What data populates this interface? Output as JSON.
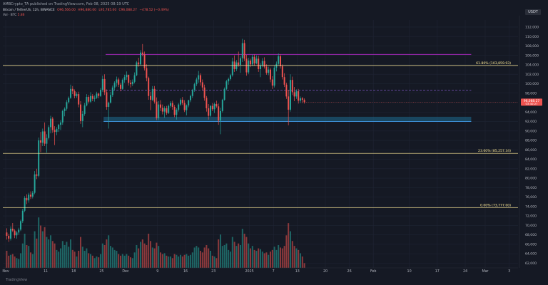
{
  "header": {
    "published": "AMBCrypto_TA published on TradingView.com, Feb 08, 2025 08:19 UTC",
    "symbol": "Bitcoin / TetherUS, 12h, BINANCE",
    "ohlc": [
      "O96,566.00",
      "H96,880.00",
      "L95,785.00",
      "C96,088.27",
      "−478.52 (−0.49%)"
    ],
    "volume_label": "Vol · BTC",
    "volume_value": "5.86"
  },
  "price_unit": "USDT",
  "footer": "TradingView",
  "colors": {
    "background": "#151924",
    "up": "#26a69a",
    "down": "#ef5350",
    "range_line": "#9c27b0",
    "fib_line": "#ffeb98",
    "midline": "#7e57c2",
    "support_zone": "#1e6b8f",
    "grid": "#1f2433",
    "axis_text": "#b2b5be",
    "price_tag": "#ef5350"
  },
  "chart_data": {
    "type": "candlestick",
    "timeframe": "12h",
    "x_ticks": [
      "Nov",
      "11",
      "18",
      "25",
      "Dec",
      "9",
      "16",
      "23",
      "2025",
      "7",
      "13",
      "20",
      "26",
      "Feb",
      "10",
      "17",
      "24",
      "Mar",
      "3"
    ],
    "x_tick_days": [
      0,
      10,
      17,
      24,
      30,
      38,
      45,
      52,
      61,
      67,
      73,
      80,
      86,
      92,
      101,
      108,
      115,
      120,
      126
    ],
    "x_range_days": [
      0,
      128
    ],
    "y_ticks": [
      62000,
      64000,
      66000,
      68000,
      70000,
      72000,
      74000,
      76000,
      78000,
      80000,
      82000,
      84000,
      86000,
      88000,
      90000,
      92000,
      94000,
      96000,
      98000,
      100000,
      102000,
      104000,
      106000,
      108000,
      110000,
      112000
    ],
    "y_range": [
      61000,
      113500
    ],
    "last_price": 96088.27,
    "last_price_label": "96,088.27",
    "last_countdown": "03:40:27",
    "levels": [
      {
        "label": "61.80% (103,859.93)",
        "price": 103859.93
      },
      {
        "label": "23.60% (85,257.34)",
        "price": 85257.34
      },
      {
        "label": "0.00% (73,777.00)",
        "price": 73777.0
      }
    ],
    "range_high": 106200,
    "range_mid": 98600,
    "support_zone": [
      92000,
      93000
    ],
    "volume_max_btc": 70000,
    "candles": [
      [
        68500,
        69400,
        67000,
        67800,
        21000
      ],
      [
        67800,
        68200,
        66500,
        67200,
        15000
      ],
      [
        67200,
        69800,
        66800,
        69300,
        16000
      ],
      [
        69300,
        70500,
        68600,
        68900,
        17000
      ],
      [
        68900,
        69200,
        67300,
        67900,
        14000
      ],
      [
        67900,
        68800,
        67200,
        68500,
        12000
      ],
      [
        68500,
        69500,
        68000,
        69100,
        11000
      ],
      [
        69100,
        71200,
        68800,
        70900,
        18000
      ],
      [
        70900,
        73500,
        70500,
        73100,
        30000
      ],
      [
        73100,
        76200,
        72800,
        75800,
        42000
      ],
      [
        75800,
        76600,
        74500,
        75300,
        28000
      ],
      [
        75300,
        76900,
        74800,
        76500,
        27000
      ],
      [
        76500,
        77200,
        75600,
        76100,
        19000
      ],
      [
        76100,
        77300,
        75700,
        76900,
        17000
      ],
      [
        76900,
        81500,
        76600,
        80800,
        45000
      ],
      [
        80800,
        82000,
        79800,
        80500,
        36000
      ],
      [
        80500,
        88600,
        80200,
        88000,
        62000
      ],
      [
        88000,
        89800,
        85500,
        87500,
        52000
      ],
      [
        87500,
        90500,
        86800,
        89900,
        45000
      ],
      [
        89900,
        91800,
        86800,
        87300,
        50000
      ],
      [
        87300,
        89300,
        85400,
        88500,
        38000
      ],
      [
        88500,
        91200,
        88200,
        90800,
        35000
      ],
      [
        90800,
        93200,
        89500,
        92600,
        40000
      ],
      [
        92600,
        93000,
        89600,
        90200,
        33000
      ],
      [
        90200,
        91000,
        87000,
        89800,
        30000
      ],
      [
        89800,
        90800,
        89100,
        90400,
        22000
      ],
      [
        90400,
        91500,
        89800,
        91300,
        20000
      ],
      [
        91300,
        92300,
        90200,
        91800,
        24000
      ],
      [
        91800,
        94500,
        91300,
        94200,
        33000
      ],
      [
        94200,
        95000,
        93100,
        94700,
        28000
      ],
      [
        94700,
        96500,
        94300,
        96100,
        32000
      ],
      [
        96100,
        97300,
        95800,
        97000,
        26000
      ],
      [
        97000,
        99800,
        96800,
        98900,
        35000
      ],
      [
        98900,
        99500,
        97800,
        98400,
        22000
      ],
      [
        98400,
        98800,
        96900,
        97400,
        20000
      ],
      [
        97400,
        98200,
        97000,
        97800,
        14000
      ],
      [
        97800,
        98300,
        95000,
        95600,
        21000
      ],
      [
        95600,
        96300,
        91500,
        92100,
        38000
      ],
      [
        92100,
        94200,
        90800,
        93600,
        26000
      ],
      [
        93600,
        95900,
        93200,
        95400,
        21000
      ],
      [
        95400,
        97800,
        95200,
        97200,
        24000
      ],
      [
        97200,
        97600,
        95800,
        96200,
        18000
      ],
      [
        96200,
        98200,
        95900,
        97400,
        17000
      ],
      [
        97400,
        97800,
        96300,
        96800,
        15000
      ],
      [
        96800,
        97500,
        96200,
        97000,
        12000
      ],
      [
        97000,
        98300,
        96800,
        97900,
        14000
      ],
      [
        97900,
        98100,
        96900,
        97400,
        13000
      ],
      [
        97400,
        99100,
        97200,
        98700,
        17000
      ],
      [
        98700,
        101700,
        98300,
        101000,
        30000
      ],
      [
        101000,
        102000,
        97600,
        98200,
        28000
      ],
      [
        98200,
        98800,
        94500,
        95100,
        35000
      ],
      [
        95100,
        96200,
        90500,
        96000,
        40000
      ],
      [
        96000,
        98300,
        95800,
        97600,
        27000
      ],
      [
        97600,
        99600,
        97200,
        99200,
        25000
      ],
      [
        99200,
        100500,
        98600,
        100200,
        22000
      ],
      [
        100200,
        101500,
        99400,
        100900,
        21000
      ],
      [
        100900,
        101300,
        99300,
        99800,
        17000
      ],
      [
        99800,
        100200,
        98400,
        98900,
        15000
      ],
      [
        98900,
        101100,
        98700,
        100800,
        17000
      ],
      [
        100800,
        101900,
        100200,
        101400,
        15000
      ],
      [
        101400,
        102600,
        100800,
        101900,
        17000
      ],
      [
        101900,
        101800,
        99600,
        100200,
        15000
      ],
      [
        100200,
        100800,
        99200,
        99900,
        13000
      ],
      [
        99900,
        100900,
        99500,
        100400,
        12000
      ],
      [
        100400,
        102400,
        100100,
        101800,
        19000
      ],
      [
        101800,
        104800,
        101600,
        104500,
        28000
      ],
      [
        104500,
        105500,
        103600,
        104100,
        24000
      ],
      [
        104100,
        107100,
        103900,
        106600,
        32000
      ],
      [
        106600,
        108400,
        105800,
        106200,
        35000
      ],
      [
        106200,
        106800,
        102800,
        103300,
        30000
      ],
      [
        103300,
        104100,
        100500,
        101200,
        28000
      ],
      [
        101200,
        101500,
        96600,
        97400,
        42000
      ],
      [
        97400,
        98300,
        94400,
        96600,
        33000
      ],
      [
        96600,
        99500,
        96300,
        98900,
        25000
      ],
      [
        98900,
        99500,
        95800,
        96200,
        24000
      ],
      [
        96200,
        97100,
        92300,
        92700,
        31000
      ],
      [
        92700,
        96300,
        92300,
        95600,
        27000
      ],
      [
        95600,
        96500,
        94200,
        94900,
        19000
      ],
      [
        94900,
        95600,
        93500,
        94100,
        17000
      ],
      [
        94100,
        95200,
        92800,
        94800,
        18000
      ],
      [
        94800,
        95300,
        93400,
        93800,
        15000
      ],
      [
        93800,
        95600,
        93600,
        95300,
        14000
      ],
      [
        95300,
        96300,
        94900,
        95900,
        14000
      ],
      [
        95900,
        96400,
        94500,
        95100,
        12000
      ],
      [
        95100,
        95500,
        92900,
        93400,
        17000
      ],
      [
        93400,
        94800,
        92400,
        94500,
        16000
      ],
      [
        94500,
        95900,
        94100,
        95600,
        14000
      ],
      [
        95600,
        96900,
        95300,
        96600,
        16000
      ],
      [
        96600,
        97200,
        95500,
        95900,
        14000
      ],
      [
        95900,
        96500,
        94000,
        94400,
        16000
      ],
      [
        94400,
        95600,
        93300,
        95400,
        17000
      ],
      [
        95400,
        96600,
        95000,
        96500,
        15000
      ],
      [
        96500,
        97700,
        96100,
        97400,
        16000
      ],
      [
        97400,
        98900,
        97000,
        98700,
        19000
      ],
      [
        98700,
        100200,
        98300,
        99900,
        25000
      ],
      [
        99900,
        101300,
        99500,
        100900,
        27000
      ],
      [
        100900,
        102700,
        100200,
        101800,
        25000
      ],
      [
        101800,
        102200,
        99600,
        100300,
        21000
      ],
      [
        100300,
        100900,
        98600,
        99200,
        19000
      ],
      [
        99200,
        99800,
        96400,
        97000,
        25000
      ],
      [
        97000,
        97400,
        94100,
        94800,
        28000
      ],
      [
        94800,
        95700,
        92400,
        93200,
        24000
      ],
      [
        93200,
        95500,
        93000,
        95300,
        21000
      ],
      [
        95300,
        95900,
        94200,
        94600,
        15000
      ],
      [
        94600,
        96000,
        93800,
        95700,
        14000
      ],
      [
        95700,
        96400,
        94900,
        95200,
        12000
      ],
      [
        95200,
        95800,
        91300,
        92200,
        35000
      ],
      [
        92200,
        94900,
        89300,
        94200,
        41000
      ],
      [
        94200,
        96800,
        93900,
        96600,
        27000
      ],
      [
        96600,
        99200,
        96400,
        98900,
        28000
      ],
      [
        98900,
        100800,
        98600,
        100500,
        30000
      ],
      [
        100500,
        101300,
        99800,
        101000,
        22000
      ],
      [
        101000,
        102100,
        100700,
        101800,
        20000
      ],
      [
        101800,
        105500,
        101500,
        104700,
        38000
      ],
      [
        104700,
        106000,
        102500,
        103100,
        32000
      ],
      [
        103100,
        105000,
        102700,
        104500,
        27000
      ],
      [
        104500,
        106800,
        103600,
        104000,
        30000
      ],
      [
        104000,
        105800,
        102300,
        105400,
        28000
      ],
      [
        105400,
        109500,
        104600,
        108600,
        48000
      ],
      [
        108600,
        109300,
        104800,
        105300,
        42000
      ],
      [
        105300,
        106100,
        101700,
        102400,
        38000
      ],
      [
        102400,
        105500,
        102000,
        104900,
        30000
      ],
      [
        104900,
        105300,
        103500,
        104100,
        24000
      ],
      [
        104100,
        106200,
        103700,
        105700,
        27000
      ],
      [
        105700,
        106200,
        103800,
        104300,
        22000
      ],
      [
        104300,
        106000,
        104100,
        105300,
        21000
      ],
      [
        105300,
        105900,
        102500,
        103100,
        24000
      ],
      [
        103100,
        104400,
        101400,
        103900,
        23000
      ],
      [
        103900,
        105400,
        103500,
        104800,
        20000
      ],
      [
        104800,
        105600,
        103200,
        103600,
        18000
      ],
      [
        103600,
        104100,
        101900,
        102300,
        19000
      ],
      [
        102300,
        103600,
        101800,
        103000,
        16000
      ],
      [
        103000,
        103400,
        100300,
        100900,
        20000
      ],
      [
        100900,
        101600,
        98900,
        99600,
        22000
      ],
      [
        99600,
        103900,
        99200,
        103400,
        26000
      ],
      [
        103400,
        104700,
        102600,
        104200,
        22000
      ],
      [
        104200,
        106400,
        103900,
        105800,
        28000
      ],
      [
        105800,
        106200,
        103200,
        103700,
        25000
      ],
      [
        103700,
        104100,
        100900,
        101400,
        24000
      ],
      [
        101400,
        102200,
        99300,
        99800,
        27000
      ],
      [
        99800,
        100200,
        96800,
        97300,
        40000
      ],
      [
        97300,
        98700,
        91200,
        94500,
        55000
      ],
      [
        94500,
        102000,
        94100,
        100800,
        45000
      ],
      [
        100800,
        101500,
        97600,
        98200,
        33000
      ],
      [
        98200,
        99300,
        96300,
        97300,
        27000
      ],
      [
        97300,
        98800,
        96800,
        98400,
        24000
      ],
      [
        98400,
        98900,
        95800,
        96400,
        22000
      ],
      [
        96400,
        97300,
        95900,
        96900,
        18000
      ],
      [
        96900,
        97200,
        95900,
        96600,
        14000
      ],
      [
        96566,
        96880,
        95785,
        96088,
        5860
      ]
    ]
  }
}
